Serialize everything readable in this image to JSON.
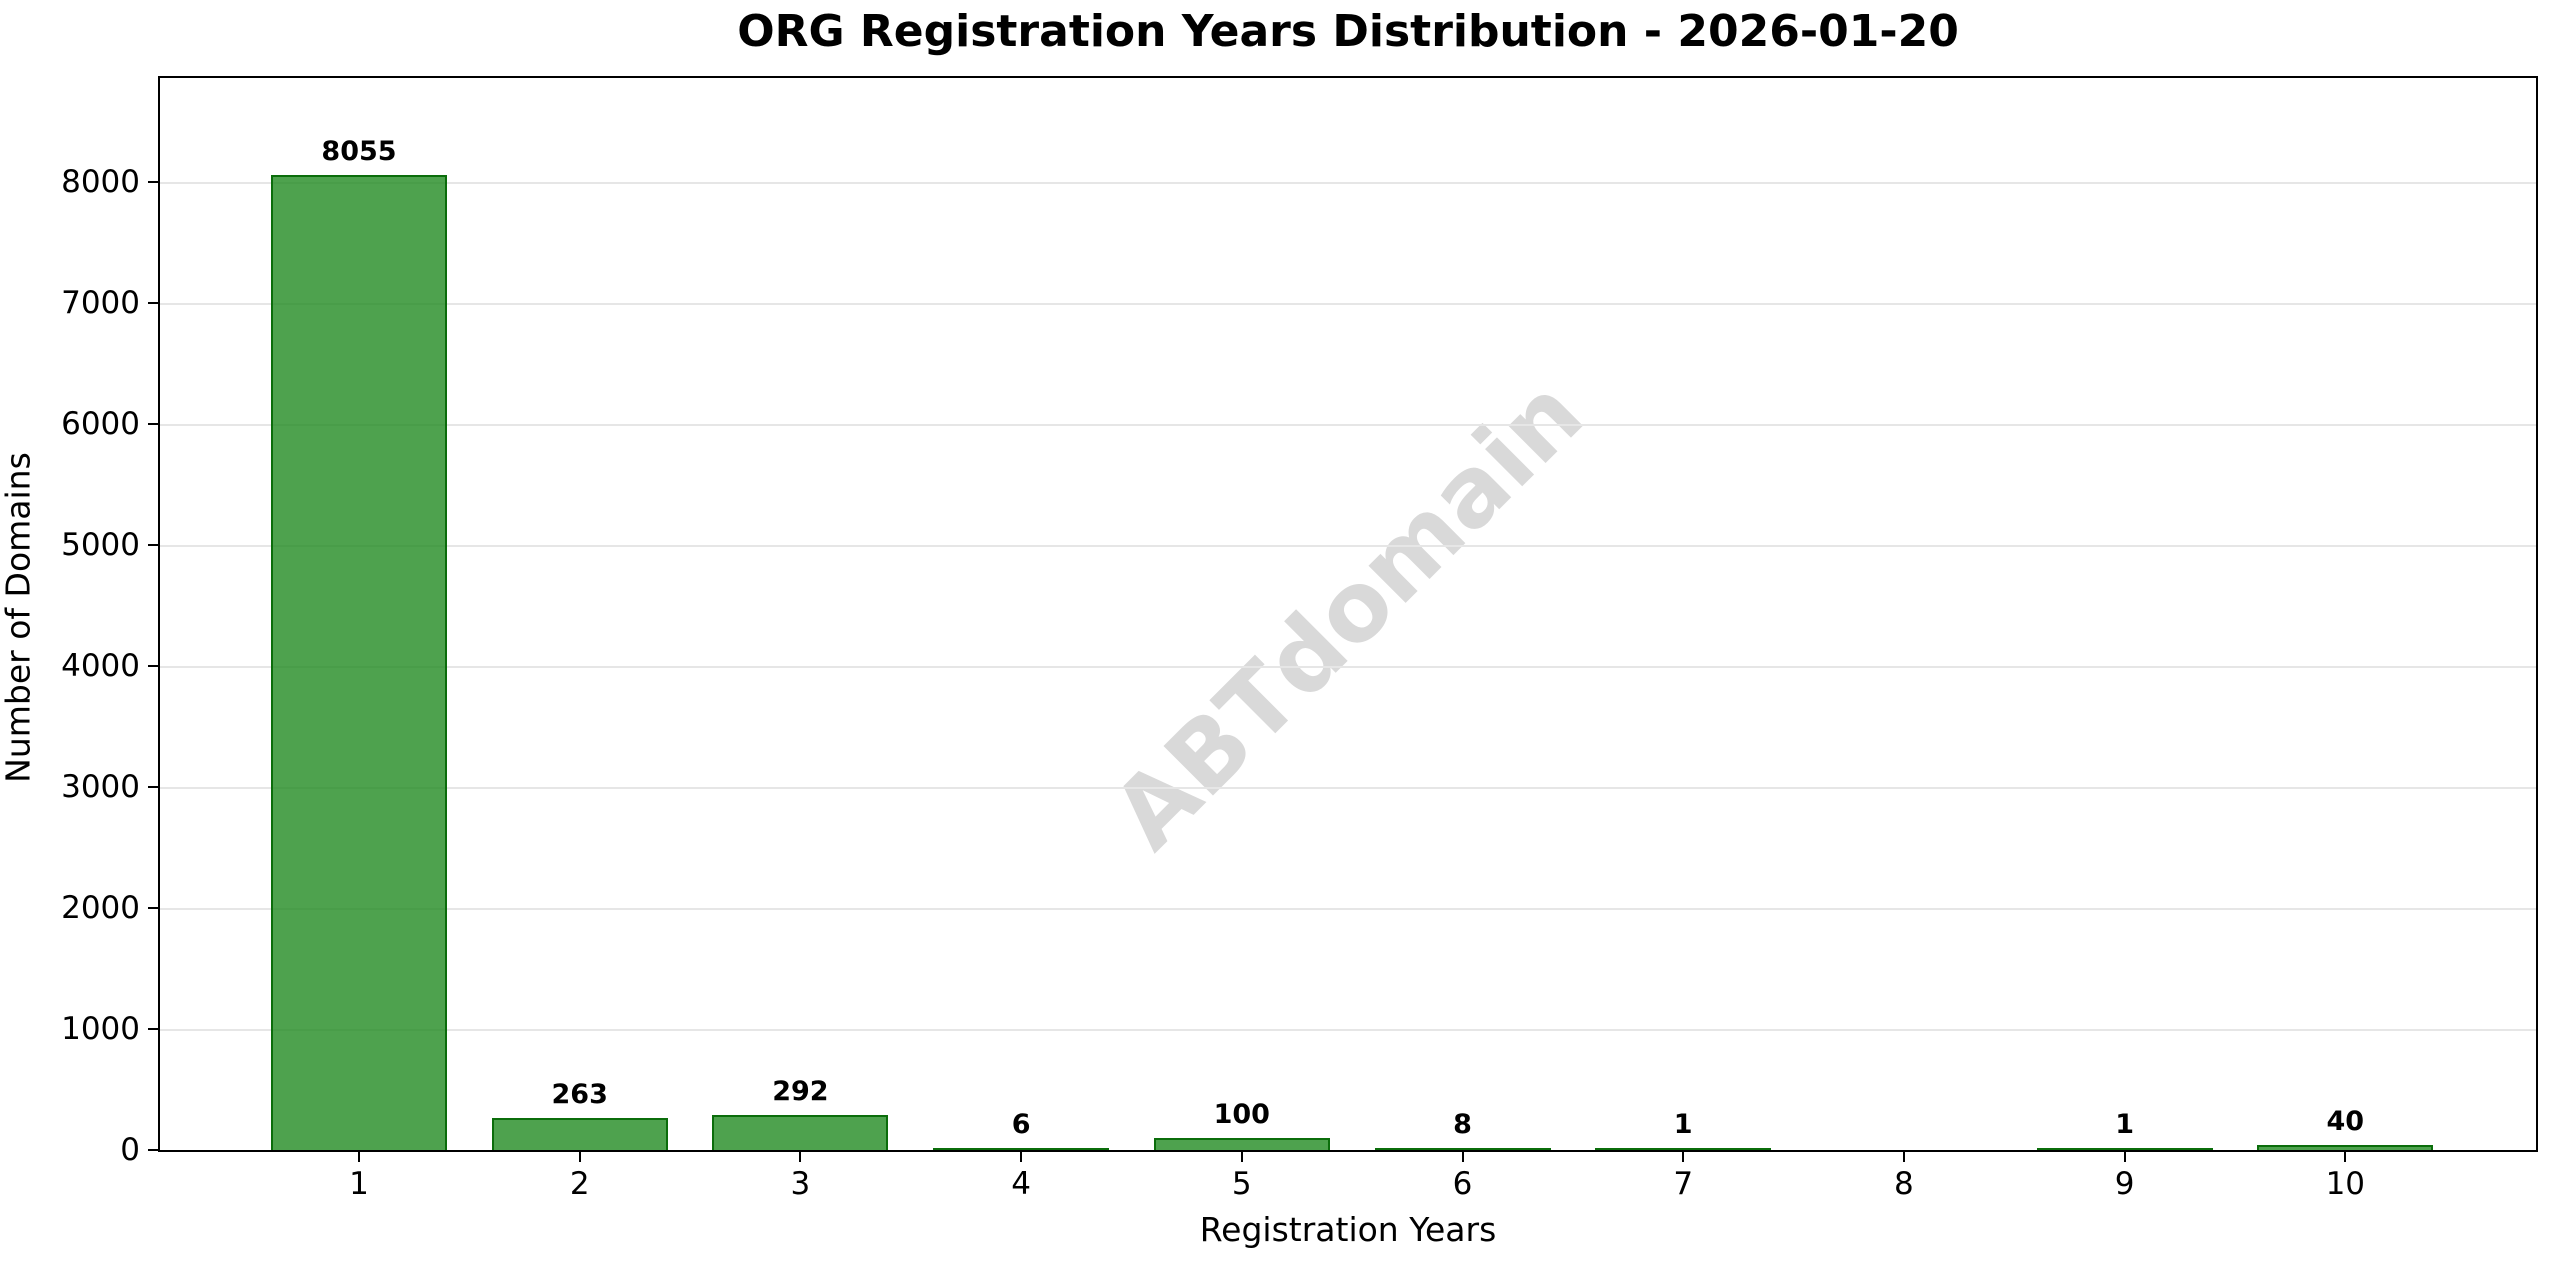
{
  "chart_data": {
    "type": "bar",
    "title": "ORG Registration Years Distribution - 2026-01-20",
    "xlabel": "Registration Years",
    "ylabel": "Number of Domains",
    "categories": [
      "1",
      "2",
      "3",
      "4",
      "5",
      "6",
      "7",
      "8",
      "9",
      "10"
    ],
    "values": [
      8055,
      263,
      292,
      6,
      100,
      8,
      1,
      0,
      1,
      40
    ],
    "bar_labels": [
      "8055",
      "263",
      "292",
      "6",
      "100",
      "8",
      "1",
      "",
      "1",
      "40"
    ],
    "yticks": [
      0,
      1000,
      2000,
      3000,
      4000,
      5000,
      6000,
      7000,
      8000
    ],
    "ytick_labels": [
      "0",
      "1000",
      "2000",
      "3000",
      "4000",
      "5000",
      "6000",
      "7000",
      "8000"
    ],
    "ylim": [
      0,
      8856
    ],
    "grid": true,
    "legend": null,
    "colors": {
      "bar_fill": "rgba(34,139,34,0.8)",
      "bar_edge": "rgba(0,100,0,0.85)",
      "grid_color": "#e6e6e6",
      "spine_color": "#000000",
      "text_color": "#000000",
      "watermark_color": "#d9d9d9"
    }
  },
  "watermark": {
    "text": "ABTdomain"
  }
}
